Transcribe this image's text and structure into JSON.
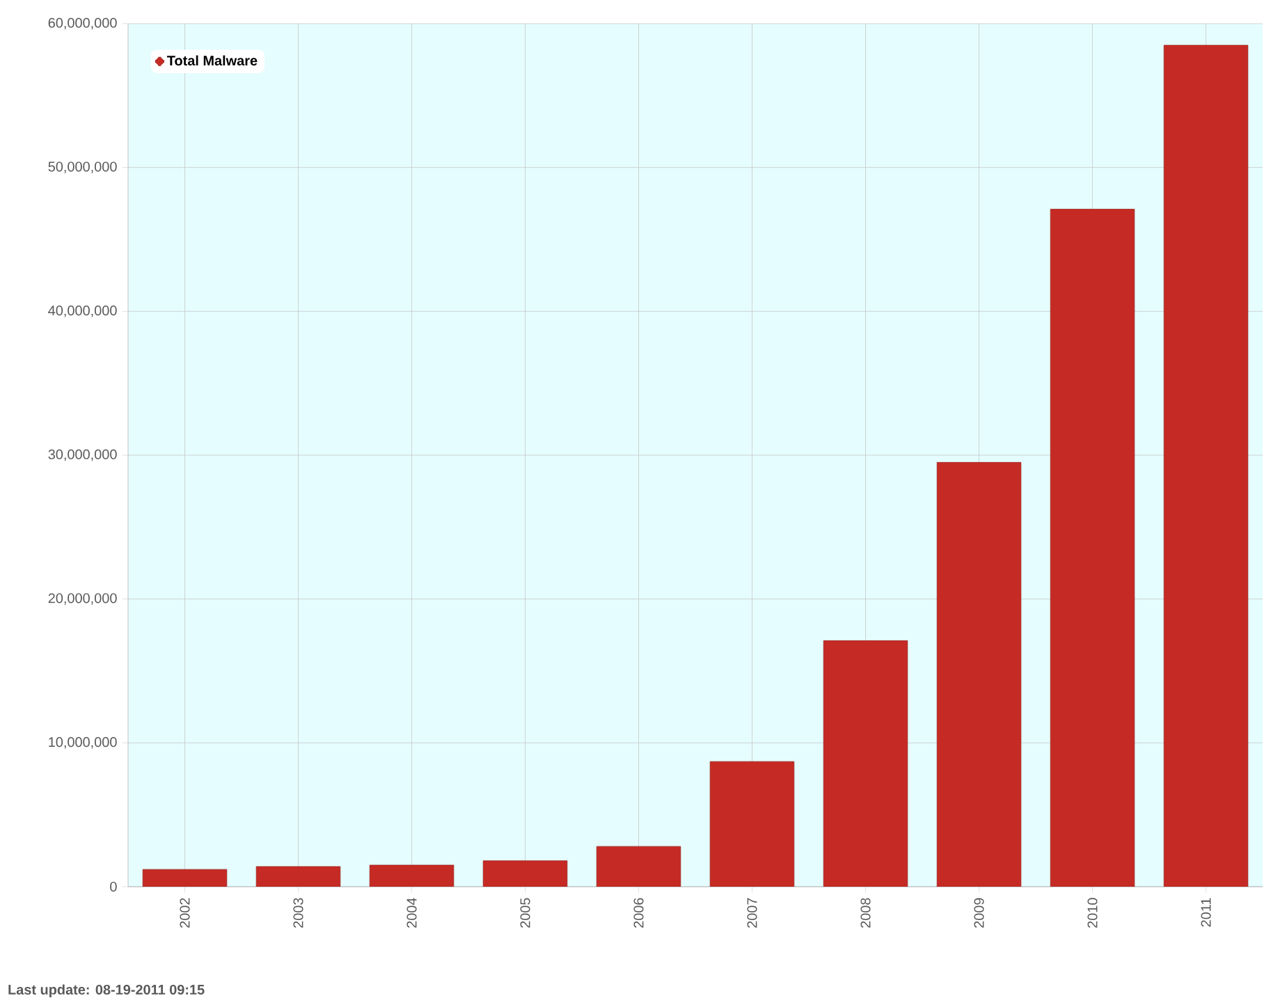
{
  "chart_data": {
    "type": "bar",
    "categories": [
      "2002",
      "2003",
      "2004",
      "2005",
      "2006",
      "2007",
      "2008",
      "2009",
      "2010",
      "2011"
    ],
    "series": [
      {
        "name": "Total Malware",
        "color": "#c62a24",
        "values": [
          1200000,
          1400000,
          1500000,
          1800000,
          2800000,
          8700000,
          17100000,
          29500000,
          47100000,
          58500000
        ]
      }
    ],
    "ylim": [
      0,
      60000000
    ],
    "yticks": [
      {
        "value": 0,
        "label": "0"
      },
      {
        "value": 10000000,
        "label": "10,000,000"
      },
      {
        "value": 20000000,
        "label": "20,000,000"
      },
      {
        "value": 30000000,
        "label": "30,000,000"
      },
      {
        "value": 40000000,
        "label": "40,000,000"
      },
      {
        "value": 50000000,
        "label": "50,000,000"
      },
      {
        "value": 60000000,
        "label": "60,000,000"
      }
    ],
    "grid": true,
    "legend": "top left",
    "annotations": [
      "Last update: 08-19-2011 09:15"
    ]
  }
}
